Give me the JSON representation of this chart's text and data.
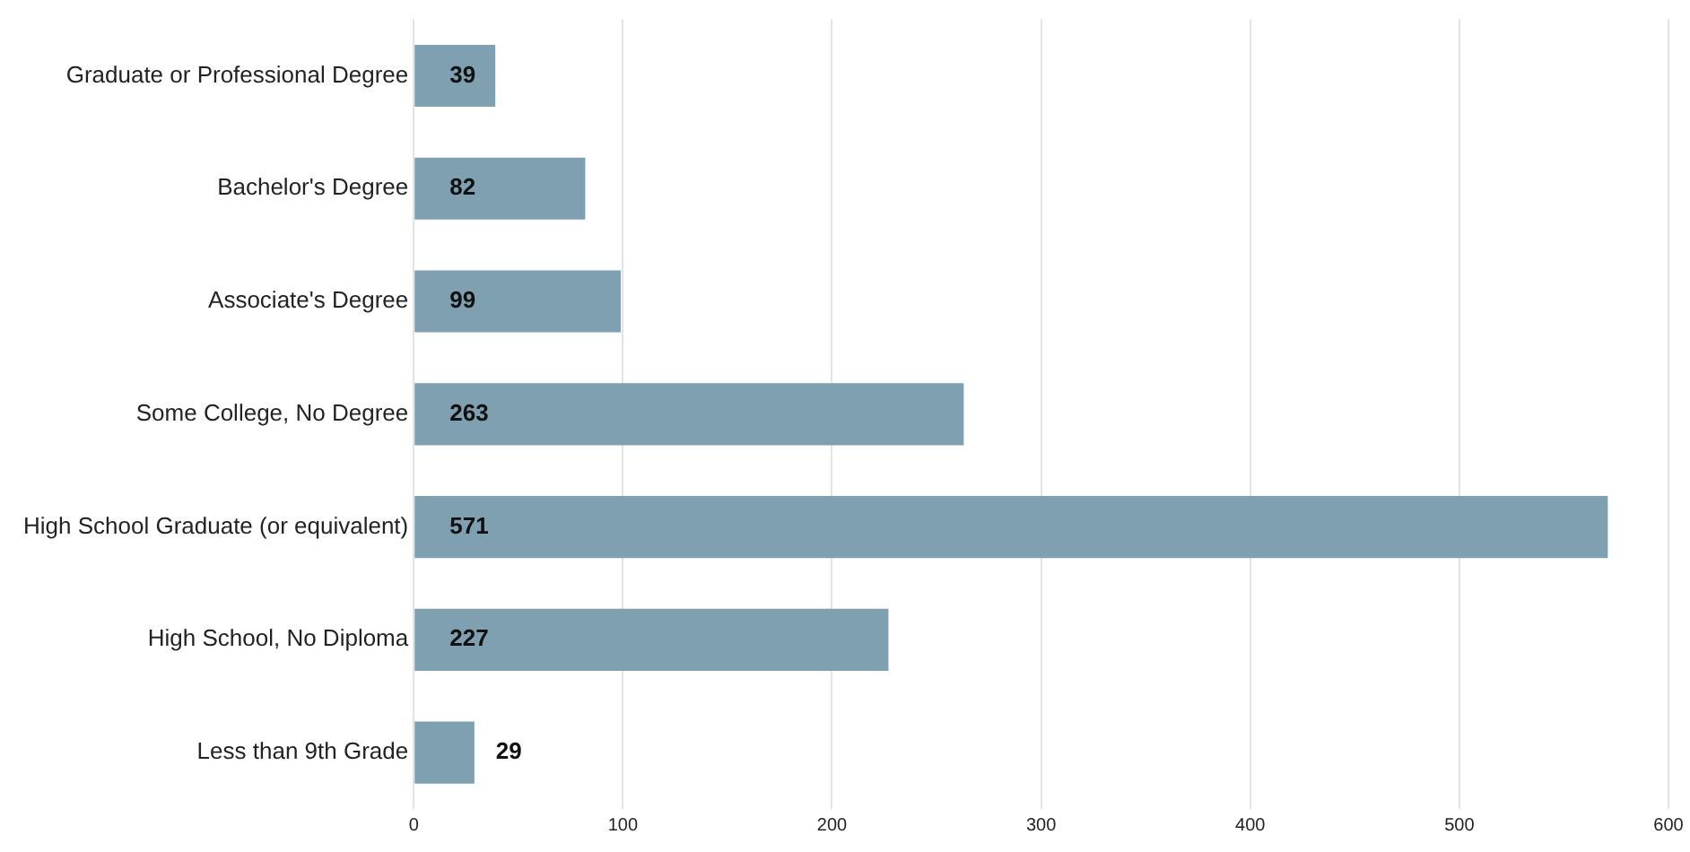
{
  "chart_data": {
    "type": "bar",
    "orientation": "horizontal",
    "categories": [
      "Graduate or Professional Degree",
      "Bachelor's Degree",
      "Associate's Degree",
      "Some College, No Degree",
      "High School Graduate (or equivalent)",
      "High School, No Diploma",
      "Less than 9th Grade"
    ],
    "values": [
      39,
      82,
      99,
      263,
      571,
      227,
      29
    ],
    "color": "#7fa0b0",
    "xlim": [
      0,
      600
    ],
    "xticks": [
      0,
      100,
      200,
      300,
      400,
      500,
      600
    ],
    "grid": "x",
    "data_labels": true,
    "legend": false
  }
}
